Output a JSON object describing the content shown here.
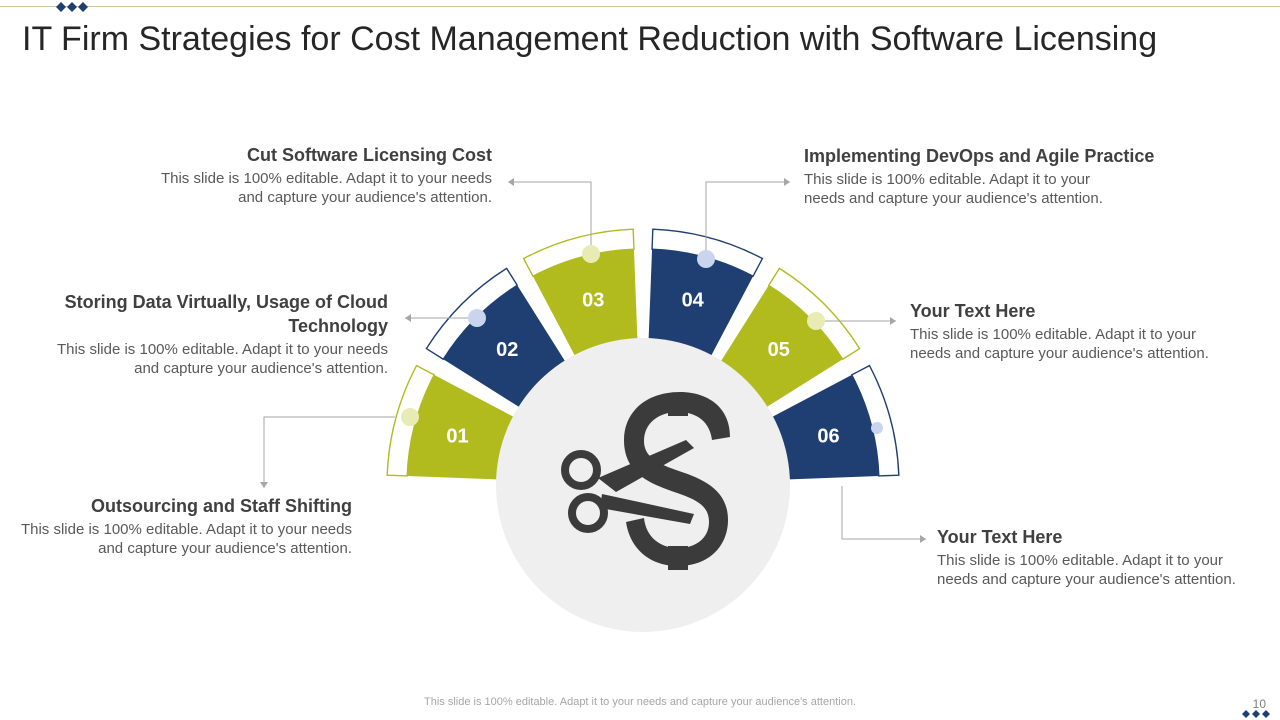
{
  "slide": {
    "title": "IT Firm Strategies  for Cost Management  Reduction with Software Licensing",
    "footer": "This slide is 100% editable. Adapt it to your needs and capture your audience's attention.",
    "page_number": "10"
  },
  "colors": {
    "green": "#b2bb1e",
    "navy": "#1f3f73",
    "center": "#efefef",
    "icon": "#3b3b3b",
    "connector": "#a6a6a6"
  },
  "center_icon": "scissors-cutting-dollar-icon",
  "segments": [
    {
      "number": "01",
      "color": "green"
    },
    {
      "number": "02",
      "color": "navy"
    },
    {
      "number": "03",
      "color": "green"
    },
    {
      "number": "04",
      "color": "navy"
    },
    {
      "number": "05",
      "color": "green"
    },
    {
      "number": "06",
      "color": "navy"
    }
  ],
  "items": [
    {
      "heading": "Outsourcing and Staff Shifting",
      "text": "This slide is 100% editable. Adapt it to your needs and capture your audience's attention."
    },
    {
      "heading": "Storing Data Virtually, Usage of Cloud Technology",
      "text": "This slide is 100% editable. Adapt it to your needs and capture your audience's attention."
    },
    {
      "heading": "Cut Software Licensing Cost",
      "text": "This slide is 100% editable. Adapt it to your needs and capture your audience's attention."
    },
    {
      "heading": "Implementing DevOps and Agile Practice",
      "text": "This slide is 100% editable. Adapt it to your needs and capture your audience's attention."
    },
    {
      "heading": "Your Text Here",
      "text": "This slide is 100% editable. Adapt it to your needs and capture your audience's attention."
    },
    {
      "heading": "Your Text Here",
      "text": "This slide is 100% editable. Adapt it to your needs and capture your audience's attention."
    }
  ]
}
